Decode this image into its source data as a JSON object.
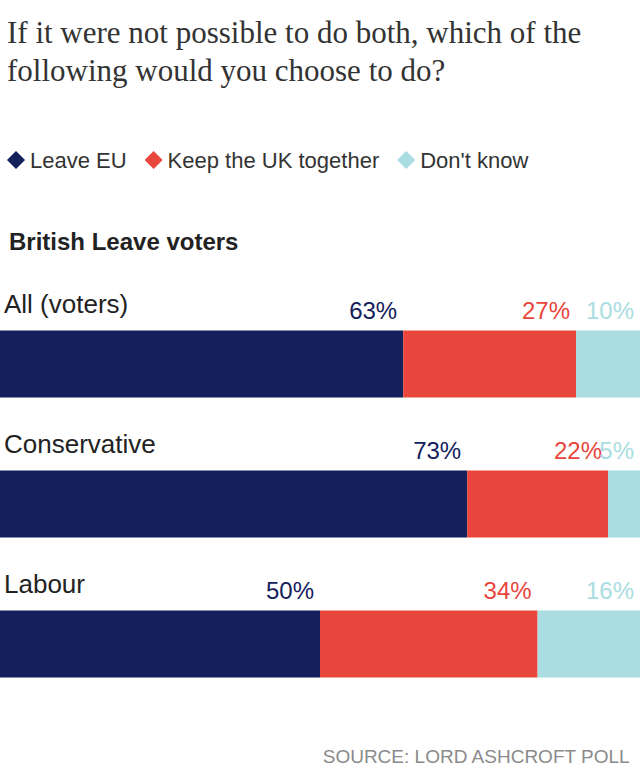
{
  "chart_data": {
    "type": "bar",
    "title": "If it were not possible to do both, which of the following would you choose to do?",
    "subtitle": "British Leave voters",
    "source": "SOURCE: LORD ASHCROFT POLL",
    "categories": [
      "All (voters)",
      "Conservative",
      "Labour"
    ],
    "series": [
      {
        "name": "Leave EU",
        "color": "#13205b",
        "values": [
          63,
          73,
          50
        ],
        "value_labels": [
          "63%",
          "73%",
          "50%"
        ]
      },
      {
        "name": "Keep the UK together",
        "color": "#e8453c",
        "values": [
          27,
          22,
          34
        ],
        "value_labels": [
          "27%",
          "22%",
          "34%"
        ]
      },
      {
        "name": "Don't know",
        "color": "#a9dde1",
        "values": [
          10,
          5,
          16
        ],
        "value_labels": [
          "10%",
          "5%",
          "16%"
        ]
      }
    ],
    "xlim": [
      0,
      100
    ],
    "orientation": "horizontal",
    "stacked": true,
    "data_labels": true,
    "tick_labels": false,
    "grid": false,
    "legend": "top-left"
  }
}
